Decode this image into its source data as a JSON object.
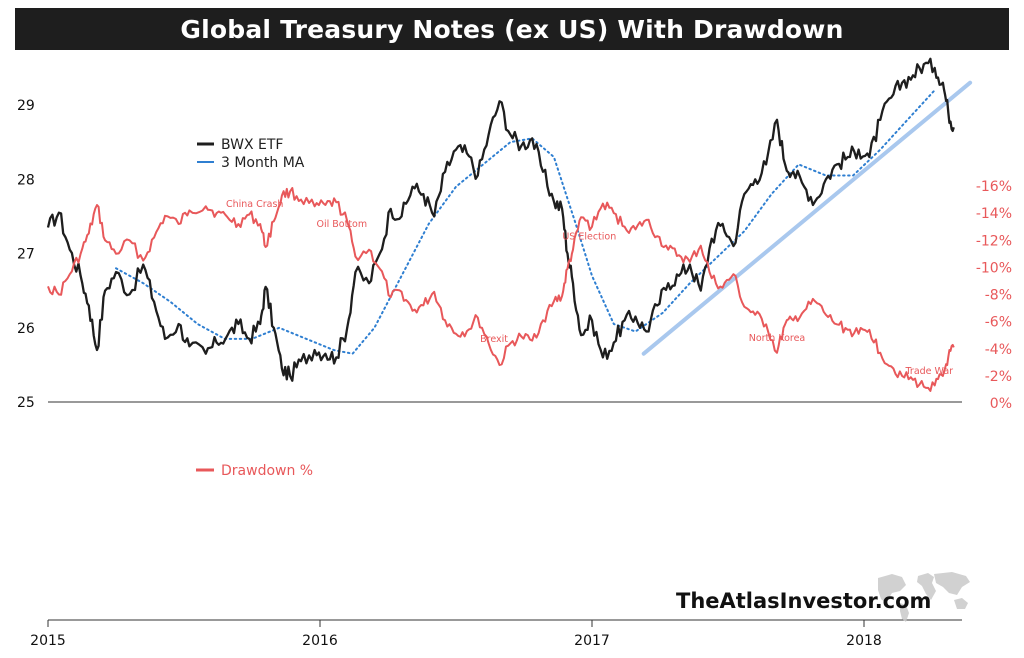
{
  "title": "Global Treasury Notes (ex US) With Drawdown",
  "watermark": "TheAtlasInvestor.com",
  "colors": {
    "price": "#1e1e1e",
    "ma": "#2f7fd1",
    "trend": "#a9c8ee",
    "drawdown": "#e8585a",
    "title_bg": "#1e1e1e"
  },
  "chart_data": [
    {
      "type": "line",
      "legend": [
        {
          "label": "BWX ETF"
        },
        {
          "label": "3 Month MA"
        }
      ],
      "ylim": [
        25,
        29.8
      ],
      "yticks": [
        "25",
        "26",
        "27",
        "28",
        "29"
      ],
      "x_range": [
        2015.0,
        2018.35
      ],
      "series": [
        {
          "name": "BWX ETF",
          "points": [
            [
              2015.0,
              27.35
            ],
            [
              2015.04,
              27.55
            ],
            [
              2015.08,
              27.05
            ],
            [
              2015.12,
              26.7
            ],
            [
              2015.15,
              26.3
            ],
            [
              2015.18,
              25.7
            ],
            [
              2015.21,
              26.5
            ],
            [
              2015.25,
              26.75
            ],
            [
              2015.3,
              26.45
            ],
            [
              2015.35,
              26.85
            ],
            [
              2015.39,
              26.35
            ],
            [
              2015.43,
              25.85
            ],
            [
              2015.48,
              26.05
            ],
            [
              2015.52,
              25.75
            ],
            [
              2015.58,
              25.65
            ],
            [
              2015.62,
              25.8
            ],
            [
              2015.66,
              25.9
            ],
            [
              2015.7,
              26.05
            ],
            [
              2015.74,
              25.85
            ],
            [
              2015.78,
              26.05
            ],
            [
              2015.8,
              26.55
            ],
            [
              2015.83,
              26.0
            ],
            [
              2015.86,
              25.45
            ],
            [
              2015.89,
              25.35
            ],
            [
              2015.93,
              25.55
            ],
            [
              2015.98,
              25.7
            ],
            [
              2016.02,
              25.65
            ],
            [
              2016.06,
              25.6
            ],
            [
              2016.1,
              26.0
            ],
            [
              2016.13,
              26.75
            ],
            [
              2016.18,
              26.6
            ],
            [
              2016.22,
              27.0
            ],
            [
              2016.26,
              27.6
            ],
            [
              2016.3,
              27.5
            ],
            [
              2016.34,
              27.9
            ],
            [
              2016.38,
              27.8
            ],
            [
              2016.42,
              27.5
            ],
            [
              2016.46,
              28.1
            ],
            [
              2016.5,
              28.4
            ],
            [
              2016.54,
              28.35
            ],
            [
              2016.58,
              28.05
            ],
            [
              2016.62,
              28.6
            ],
            [
              2016.66,
              29.05
            ],
            [
              2016.7,
              28.6
            ],
            [
              2016.74,
              28.45
            ],
            [
              2016.78,
              28.55
            ],
            [
              2016.82,
              28.1
            ],
            [
              2016.86,
              27.7
            ],
            [
              2016.89,
              27.6
            ],
            [
              2016.91,
              27.0
            ],
            [
              2016.93,
              26.6
            ],
            [
              2016.96,
              25.9
            ],
            [
              2017.0,
              26.1
            ],
            [
              2017.04,
              25.6
            ],
            [
              2017.08,
              25.8
            ],
            [
              2017.12,
              26.1
            ],
            [
              2017.16,
              26.15
            ],
            [
              2017.2,
              25.95
            ],
            [
              2017.24,
              26.3
            ],
            [
              2017.28,
              26.6
            ],
            [
              2017.32,
              26.7
            ],
            [
              2017.36,
              26.85
            ],
            [
              2017.4,
              26.5
            ],
            [
              2017.44,
              27.2
            ],
            [
              2017.48,
              27.4
            ],
            [
              2017.52,
              27.1
            ],
            [
              2017.56,
              27.8
            ],
            [
              2017.6,
              28.0
            ],
            [
              2017.64,
              28.2
            ],
            [
              2017.68,
              28.8
            ],
            [
              2017.71,
              28.2
            ],
            [
              2017.74,
              28.1
            ],
            [
              2017.78,
              27.9
            ],
            [
              2017.82,
              27.7
            ],
            [
              2017.86,
              28.0
            ],
            [
              2017.9,
              28.2
            ],
            [
              2017.94,
              28.3
            ],
            [
              2017.98,
              28.4
            ],
            [
              2018.02,
              28.3
            ],
            [
              2018.06,
              28.8
            ],
            [
              2018.1,
              29.1
            ],
            [
              2018.14,
              29.3
            ],
            [
              2018.18,
              29.4
            ],
            [
              2018.22,
              29.55
            ],
            [
              2018.26,
              29.5
            ],
            [
              2018.29,
              29.3
            ],
            [
              2018.31,
              28.9
            ],
            [
              2018.33,
              28.7
            ]
          ]
        },
        {
          "name": "3 Month MA",
          "points": [
            [
              2015.25,
              26.8
            ],
            [
              2015.35,
              26.6
            ],
            [
              2015.45,
              26.35
            ],
            [
              2015.55,
              26.05
            ],
            [
              2015.65,
              25.85
            ],
            [
              2015.75,
              25.85
            ],
            [
              2015.85,
              26.0
            ],
            [
              2015.95,
              25.85
            ],
            [
              2016.05,
              25.7
            ],
            [
              2016.12,
              25.65
            ],
            [
              2016.2,
              26.0
            ],
            [
              2016.3,
              26.7
            ],
            [
              2016.4,
              27.4
            ],
            [
              2016.5,
              27.9
            ],
            [
              2016.6,
              28.2
            ],
            [
              2016.7,
              28.5
            ],
            [
              2016.78,
              28.55
            ],
            [
              2016.86,
              28.3
            ],
            [
              2016.94,
              27.4
            ],
            [
              2017.0,
              26.7
            ],
            [
              2017.08,
              26.05
            ],
            [
              2017.16,
              25.95
            ],
            [
              2017.26,
              26.2
            ],
            [
              2017.36,
              26.6
            ],
            [
              2017.46,
              26.95
            ],
            [
              2017.56,
              27.3
            ],
            [
              2017.66,
              27.8
            ],
            [
              2017.76,
              28.2
            ],
            [
              2017.86,
              28.05
            ],
            [
              2017.96,
              28.05
            ],
            [
              2018.06,
              28.4
            ],
            [
              2018.16,
              28.8
            ],
            [
              2018.26,
              29.2
            ]
          ]
        },
        {
          "name": "Trend",
          "points": [
            [
              2017.19,
              25.65
            ],
            [
              2018.39,
              29.3
            ]
          ]
        }
      ]
    },
    {
      "type": "line",
      "legend": [
        {
          "label": "Drawdown %"
        }
      ],
      "ylim": [
        -16,
        0
      ],
      "yticks": [
        "0%",
        "-2%",
        "-4%",
        "-6%",
        "-8%",
        "-10%",
        "-12%",
        "-14%",
        "-16%"
      ],
      "xticks": [
        "2015",
        "2016",
        "2017",
        "2018"
      ],
      "series": [
        {
          "name": "Drawdown %",
          "points": [
            [
              2015.0,
              -8.6
            ],
            [
              2015.04,
              -8.0
            ],
            [
              2015.08,
              -9.5
            ],
            [
              2015.12,
              -11.0
            ],
            [
              2015.15,
              -12.5
            ],
            [
              2015.18,
              -14.6
            ],
            [
              2015.21,
              -12.0
            ],
            [
              2015.25,
              -11.0
            ],
            [
              2015.3,
              -12.0
            ],
            [
              2015.35,
              -10.5
            ],
            [
              2015.39,
              -12.2
            ],
            [
              2015.43,
              -13.8
            ],
            [
              2015.48,
              -13.2
            ],
            [
              2015.52,
              -14.2
            ],
            [
              2015.58,
              -14.5
            ],
            [
              2015.62,
              -14.0
            ],
            [
              2015.66,
              -13.7
            ],
            [
              2015.7,
              -13.2
            ],
            [
              2015.74,
              -13.9
            ],
            [
              2015.78,
              -13.2
            ],
            [
              2015.8,
              -11.5
            ],
            [
              2015.83,
              -13.4
            ],
            [
              2015.86,
              -15.3
            ],
            [
              2015.89,
              -15.6
            ],
            [
              2015.93,
              -15.0
            ],
            [
              2015.98,
              -14.5
            ],
            [
              2016.02,
              -14.6
            ],
            [
              2016.06,
              -14.8
            ],
            [
              2016.1,
              -13.4
            ],
            [
              2016.13,
              -10.8
            ],
            [
              2016.18,
              -11.3
            ],
            [
              2016.22,
              -9.9
            ],
            [
              2016.26,
              -7.8
            ],
            [
              2016.3,
              -8.2
            ],
            [
              2016.34,
              -6.8
            ],
            [
              2016.38,
              -7.2
            ],
            [
              2016.42,
              -8.2
            ],
            [
              2016.46,
              -6.1
            ],
            [
              2016.5,
              -5.1
            ],
            [
              2016.54,
              -5.3
            ],
            [
              2016.58,
              -6.3
            ],
            [
              2016.62,
              -4.4
            ],
            [
              2016.66,
              -2.8
            ],
            [
              2016.7,
              -4.4
            ],
            [
              2016.74,
              -4.9
            ],
            [
              2016.78,
              -4.6
            ],
            [
              2016.82,
              -6.1
            ],
            [
              2016.86,
              -7.5
            ],
            [
              2016.89,
              -7.9
            ],
            [
              2016.91,
              -9.9
            ],
            [
              2016.93,
              -11.3
            ],
            [
              2016.96,
              -13.7
            ],
            [
              2017.0,
              -13.0
            ],
            [
              2017.04,
              -14.7
            ],
            [
              2017.08,
              -14.0
            ],
            [
              2017.12,
              -13.0
            ],
            [
              2017.16,
              -12.8
            ],
            [
              2017.2,
              -13.5
            ],
            [
              2017.24,
              -12.3
            ],
            [
              2017.28,
              -11.3
            ],
            [
              2017.32,
              -10.9
            ],
            [
              2017.36,
              -10.4
            ],
            [
              2017.4,
              -11.6
            ],
            [
              2017.44,
              -9.2
            ],
            [
              2017.48,
              -8.5
            ],
            [
              2017.52,
              -9.5
            ],
            [
              2017.56,
              -7.1
            ],
            [
              2017.6,
              -6.5
            ],
            [
              2017.64,
              -5.8
            ],
            [
              2017.68,
              -3.7
            ],
            [
              2017.71,
              -5.8
            ],
            [
              2017.74,
              -6.1
            ],
            [
              2017.78,
              -6.8
            ],
            [
              2017.82,
              -7.5
            ],
            [
              2017.86,
              -6.5
            ],
            [
              2017.9,
              -5.8
            ],
            [
              2017.94,
              -5.4
            ],
            [
              2017.98,
              -5.1
            ],
            [
              2018.02,
              -5.4
            ],
            [
              2018.06,
              -3.7
            ],
            [
              2018.1,
              -2.7
            ],
            [
              2018.14,
              -2.0
            ],
            [
              2018.18,
              -1.7
            ],
            [
              2018.22,
              -1.2
            ],
            [
              2018.26,
              -1.3
            ],
            [
              2018.29,
              -2.0
            ],
            [
              2018.31,
              -3.4
            ],
            [
              2018.33,
              -4.1
            ]
          ]
        }
      ],
      "annotations": [
        {
          "text": "China Crash",
          "x": 2015.76
        },
        {
          "text": "Oil Bottom",
          "x": 2016.08
        },
        {
          "text": "Brexit",
          "x": 2016.64
        },
        {
          "text": "US Election",
          "x": 2016.99
        },
        {
          "text": "North Korea",
          "x": 2017.68
        },
        {
          "text": "Trade War",
          "x": 2018.24
        }
      ]
    }
  ]
}
